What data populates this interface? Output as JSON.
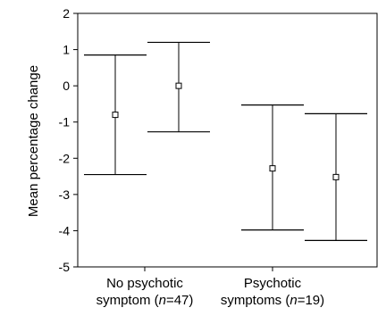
{
  "chart_data": {
    "type": "error-bar",
    "title": "",
    "ylabel": "Mean percentage change",
    "xlabel": "",
    "ylim": [
      -5,
      2
    ],
    "yticks": [
      "2",
      "1",
      "0",
      "-1",
      "-2",
      "-3",
      "-4",
      "-5"
    ],
    "ytick_values": [
      2,
      1,
      0,
      -1,
      -2,
      -3,
      -4,
      -5
    ],
    "grid": false,
    "legend": "none",
    "categories": [
      {
        "line1": "No psychotic",
        "line2_pre": "symptom (",
        "line2_n": "n",
        "line2_post": "=47)",
        "label": "No psychotic symptom (n=47)"
      },
      {
        "line1": "Psychotic",
        "line2_pre": "symptoms (",
        "line2_n": "n",
        "line2_post": "=19)",
        "label": "Psychotic symptoms (n=19)"
      }
    ],
    "bars": [
      {
        "category": 0,
        "slot": 0,
        "mean": -0.8,
        "lower": -2.45,
        "upper": 0.85
      },
      {
        "category": 0,
        "slot": 1,
        "mean": 0.0,
        "lower": -1.27,
        "upper": 1.2
      },
      {
        "category": 1,
        "slot": 0,
        "mean": -2.28,
        "lower": -3.98,
        "upper": -0.53
      },
      {
        "category": 1,
        "slot": 1,
        "mean": -2.52,
        "lower": -4.27,
        "upper": -0.77
      }
    ],
    "colors": {
      "axis": "#000000",
      "marker_fill": "#ffffff",
      "background": "#ffffff"
    }
  }
}
